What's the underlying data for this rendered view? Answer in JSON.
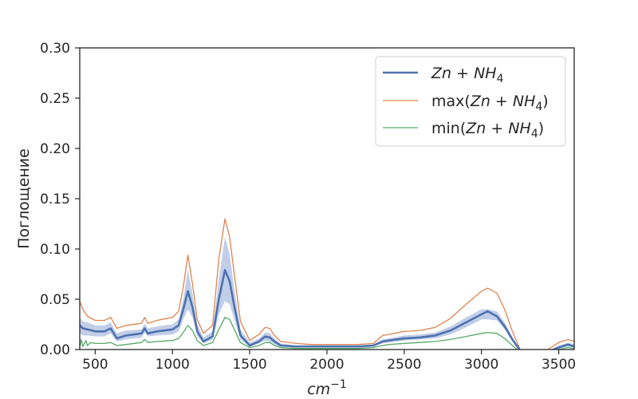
{
  "chart_data": {
    "type": "line",
    "xlabel": "cm^-1",
    "ylabel": "Поглощение",
    "xlim": [
      400,
      3600
    ],
    "ylim": [
      0,
      0.3
    ],
    "xticks": [
      500,
      1000,
      1500,
      2000,
      2500,
      3000,
      3500
    ],
    "yticks": [
      "0.00",
      "0.05",
      "0.10",
      "0.15",
      "0.20",
      "0.25",
      "0.30"
    ],
    "grid": false,
    "legend_position": "top-right",
    "band": {
      "color": "#b7c6e4",
      "x": [
        400,
        420,
        450,
        500,
        560,
        600,
        640,
        700,
        800,
        820,
        840,
        900,
        1000,
        1040,
        1070,
        1100,
        1130,
        1160,
        1200,
        1260,
        1300,
        1340,
        1370,
        1400,
        1440,
        1500,
        1560,
        1600,
        1630,
        1660,
        1700,
        1800,
        1900,
        2000,
        2100,
        2200,
        2300,
        2360,
        2400,
        2500,
        2600,
        2700,
        2800,
        2900,
        3000,
        3040,
        3100,
        3150,
        3200,
        3250,
        3300,
        3400,
        3500,
        3560,
        3600
      ],
      "upper": [
        0.032,
        0.028,
        0.027,
        0.024,
        0.024,
        0.027,
        0.016,
        0.019,
        0.02,
        0.026,
        0.021,
        0.023,
        0.025,
        0.03,
        0.05,
        0.08,
        0.055,
        0.025,
        0.012,
        0.018,
        0.07,
        0.112,
        0.095,
        0.06,
        0.02,
        0.007,
        0.011,
        0.017,
        0.016,
        0.011,
        0.006,
        0.004,
        0.004,
        0.004,
        0.004,
        0.004,
        0.005,
        0.01,
        0.011,
        0.014,
        0.015,
        0.017,
        0.023,
        0.032,
        0.04,
        0.04,
        0.038,
        0.027,
        0.012,
        0.0,
        -0.004,
        -0.004,
        0.004,
        0.007,
        0.005
      ],
      "lower": [
        0.016,
        0.014,
        0.014,
        0.013,
        0.013,
        0.016,
        0.008,
        0.01,
        0.012,
        0.017,
        0.013,
        0.014,
        0.015,
        0.018,
        0.03,
        0.04,
        0.032,
        0.014,
        0.006,
        0.01,
        0.035,
        0.048,
        0.045,
        0.03,
        0.01,
        0.003,
        0.006,
        0.009,
        0.008,
        0.005,
        0.003,
        0.002,
        0.002,
        0.002,
        0.002,
        0.002,
        0.003,
        0.006,
        0.007,
        0.009,
        0.01,
        0.011,
        0.015,
        0.022,
        0.03,
        0.03,
        0.029,
        0.02,
        0.008,
        -0.002,
        -0.004,
        -0.004,
        0.001,
        0.003,
        0.002
      ]
    },
    "series": [
      {
        "name": "Zn + NH4",
        "color": "#4c72b0",
        "line_width": 2.6,
        "x": [
          400,
          420,
          450,
          500,
          560,
          600,
          640,
          700,
          800,
          820,
          840,
          900,
          1000,
          1040,
          1070,
          1100,
          1130,
          1160,
          1200,
          1260,
          1300,
          1340,
          1370,
          1400,
          1440,
          1500,
          1560,
          1600,
          1630,
          1660,
          1700,
          1800,
          1900,
          2000,
          2100,
          2200,
          2300,
          2360,
          2400,
          2500,
          2600,
          2700,
          2800,
          2900,
          3000,
          3040,
          3100,
          3150,
          3200,
          3250,
          3300,
          3400,
          3500,
          3560,
          3600
        ],
        "y": [
          0.024,
          0.021,
          0.02,
          0.018,
          0.018,
          0.021,
          0.011,
          0.014,
          0.016,
          0.021,
          0.016,
          0.018,
          0.02,
          0.024,
          0.04,
          0.058,
          0.042,
          0.018,
          0.008,
          0.013,
          0.05,
          0.079,
          0.068,
          0.043,
          0.014,
          0.004,
          0.008,
          0.013,
          0.012,
          0.008,
          0.004,
          0.003,
          0.003,
          0.003,
          0.003,
          0.003,
          0.004,
          0.008,
          0.009,
          0.011,
          0.012,
          0.014,
          0.019,
          0.027,
          0.035,
          0.038,
          0.033,
          0.023,
          0.01,
          -0.001,
          -0.004,
          -0.004,
          0.002,
          0.005,
          0.003
        ]
      },
      {
        "name": "max(Zn + NH4)",
        "color": "#dd8452",
        "line_width": 1.3,
        "x": [
          400,
          420,
          450,
          500,
          560,
          600,
          640,
          700,
          800,
          820,
          840,
          900,
          1000,
          1040,
          1070,
          1100,
          1130,
          1160,
          1200,
          1260,
          1300,
          1340,
          1370,
          1400,
          1440,
          1500,
          1560,
          1600,
          1630,
          1660,
          1700,
          1800,
          1900,
          2000,
          2100,
          2200,
          2300,
          2360,
          2400,
          2500,
          2600,
          2700,
          2800,
          2900,
          3000,
          3040,
          3100,
          3150,
          3200,
          3250,
          3300,
          3400,
          3500,
          3560,
          3600
        ],
        "y": [
          0.048,
          0.04,
          0.033,
          0.029,
          0.029,
          0.032,
          0.021,
          0.024,
          0.026,
          0.032,
          0.026,
          0.029,
          0.032,
          0.038,
          0.062,
          0.094,
          0.065,
          0.03,
          0.016,
          0.024,
          0.09,
          0.13,
          0.112,
          0.075,
          0.028,
          0.009,
          0.015,
          0.022,
          0.021,
          0.014,
          0.008,
          0.006,
          0.005,
          0.005,
          0.005,
          0.005,
          0.006,
          0.014,
          0.015,
          0.018,
          0.019,
          0.022,
          0.031,
          0.045,
          0.058,
          0.061,
          0.056,
          0.04,
          0.018,
          0.0,
          -0.003,
          -0.003,
          0.007,
          0.01,
          0.008
        ]
      },
      {
        "name": "min(Zn + NH4)",
        "color": "#55a868",
        "line_width": 1.3,
        "x": [
          400,
          410,
          420,
          440,
          450,
          470,
          500,
          560,
          600,
          640,
          700,
          800,
          820,
          840,
          900,
          1000,
          1040,
          1070,
          1100,
          1130,
          1160,
          1200,
          1260,
          1300,
          1340,
          1370,
          1400,
          1440,
          1500,
          1560,
          1600,
          1630,
          1660,
          1700,
          1800,
          1900,
          2000,
          2100,
          2200,
          2300,
          2360,
          2400,
          2500,
          2600,
          2700,
          2800,
          2900,
          3000,
          3040,
          3100,
          3150,
          3200,
          3250,
          3300,
          3400,
          3500,
          3560,
          3600
        ],
        "y": [
          0.002,
          0.01,
          0.003,
          0.009,
          0.004,
          0.007,
          0.006,
          0.006,
          0.007,
          0.004,
          0.005,
          0.007,
          0.01,
          0.007,
          0.008,
          0.009,
          0.011,
          0.017,
          0.024,
          0.019,
          0.009,
          0.004,
          0.007,
          0.02,
          0.032,
          0.03,
          0.02,
          0.007,
          0.002,
          0.004,
          0.007,
          0.007,
          0.004,
          0.002,
          0.001,
          0.001,
          0.001,
          0.001,
          0.001,
          0.002,
          0.004,
          0.005,
          0.006,
          0.007,
          0.008,
          0.01,
          0.013,
          0.016,
          0.017,
          0.016,
          0.011,
          0.004,
          -0.003,
          -0.005,
          -0.005,
          0.0,
          0.002,
          0.001
        ]
      }
    ]
  }
}
